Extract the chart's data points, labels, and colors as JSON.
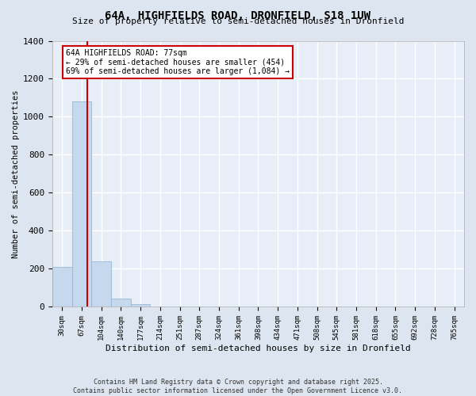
{
  "title1": "64A, HIGHFIELDS ROAD, DRONFIELD, S18 1UW",
  "title2": "Size of property relative to semi-detached houses in Dronfield",
  "xlabel": "Distribution of semi-detached houses by size in Dronfield",
  "ylabel": "Number of semi-detached properties",
  "categories": [
    "30sqm",
    "67sqm",
    "104sqm",
    "140sqm",
    "177sqm",
    "214sqm",
    "251sqm",
    "287sqm",
    "324sqm",
    "361sqm",
    "398sqm",
    "434sqm",
    "471sqm",
    "508sqm",
    "545sqm",
    "581sqm",
    "618sqm",
    "655sqm",
    "692sqm",
    "728sqm",
    "765sqm"
  ],
  "values": [
    210,
    1080,
    240,
    45,
    15,
    0,
    0,
    0,
    0,
    0,
    0,
    0,
    0,
    0,
    0,
    0,
    0,
    0,
    0,
    0,
    0
  ],
  "bar_color": "#c5d8ed",
  "bar_edge_color": "#8ab0d0",
  "ylim": [
    0,
    1400
  ],
  "yticks": [
    0,
    200,
    400,
    600,
    800,
    1000,
    1200,
    1400
  ],
  "red_line_x": 1.28,
  "annotation_text": "64A HIGHFIELDS ROAD: 77sqm\n← 29% of semi-detached houses are smaller (454)\n69% of semi-detached houses are larger (1,084) →",
  "annotation_box_color": "#ffffff",
  "annotation_border_color": "#cc0000",
  "footer1": "Contains HM Land Registry data © Crown copyright and database right 2025.",
  "footer2": "Contains public sector information licensed under the Open Government Licence v3.0.",
  "bg_color": "#dde6f0",
  "plot_bg_color": "#e8eef8",
  "grid_color": "#ffffff"
}
